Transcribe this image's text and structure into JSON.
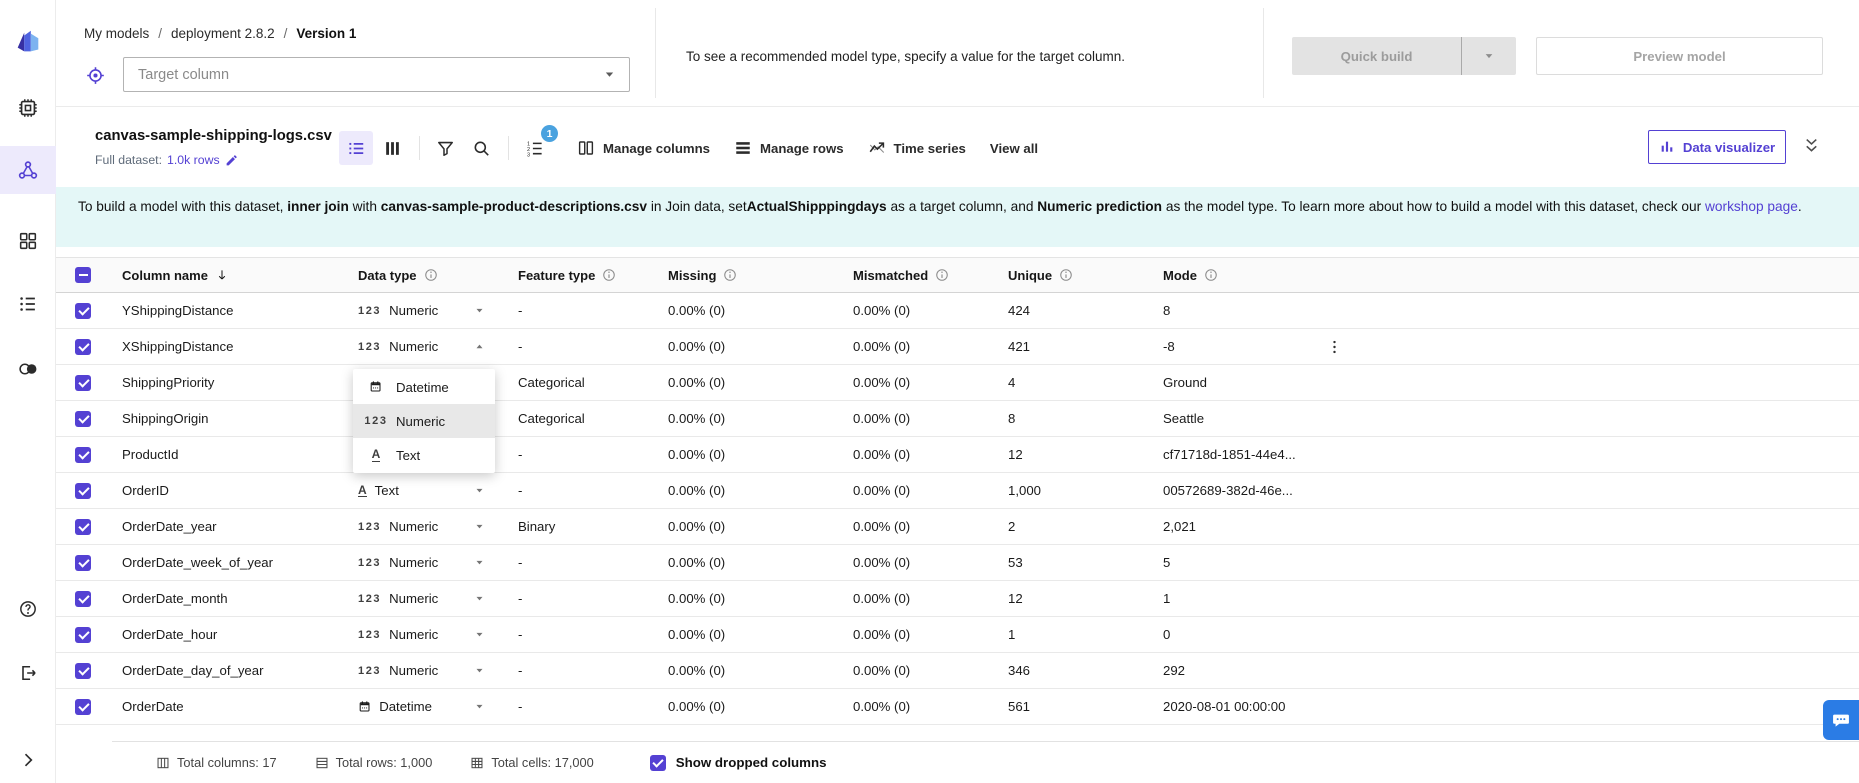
{
  "colors": {
    "accent": "#5441d3",
    "banner_bg": "#e4f7f7",
    "badge_blue": "#4aa2df",
    "selected_bg": "#edeafc",
    "chat_blue": "#2b7ce5"
  },
  "sidebar": {
    "items": [
      {
        "icon": "canvas-logo-icon",
        "selected": false
      },
      {
        "icon": "compute-chip-icon",
        "selected": false
      },
      {
        "icon": "models-icon",
        "selected": true
      },
      {
        "icon": "apps-icon",
        "selected": false
      },
      {
        "icon": "list-icon",
        "selected": false
      },
      {
        "icon": "datasets-icon",
        "selected": false
      }
    ],
    "bottom_items": [
      {
        "icon": "help-icon"
      },
      {
        "icon": "signout-icon"
      },
      {
        "icon": "expand-icon"
      }
    ]
  },
  "header": {
    "breadcrumb": [
      "My models",
      "deployment 2.8.2",
      "Version 1"
    ],
    "breadcrumb_separator": "/",
    "target_placeholder": "Target column",
    "hint": "To see a recommended model type, specify a value for the target column.",
    "quick_build_label": "Quick build",
    "preview_model_label": "Preview model"
  },
  "toolbar": {
    "dataset_name": "canvas-sample-shipping-logs.csv",
    "full_dataset_label": "Full dataset:",
    "rows_link": "1.0k rows",
    "sort_badge_count": "1",
    "actions": [
      {
        "icon": "manage-columns-icon",
        "label": "Manage columns"
      },
      {
        "icon": "manage-rows-icon",
        "label": "Manage rows"
      },
      {
        "icon": "time-series-icon",
        "label": "Time series"
      },
      {
        "icon": "",
        "label": "View all"
      }
    ],
    "data_visualizer_label": "Data visualizer"
  },
  "banner": {
    "segments": [
      {
        "text": "To build a model with this dataset, ",
        "style": "normal"
      },
      {
        "text": "inner join",
        "style": "bold"
      },
      {
        "text": " with ",
        "style": "normal"
      },
      {
        "text": "canvas-sample-product-descriptions.csv",
        "style": "bold"
      },
      {
        "text": " in Join data, set",
        "style": "normal"
      },
      {
        "text": "ActualShipppingdays",
        "style": "bold"
      },
      {
        "text": " as a target column, and ",
        "style": "normal"
      },
      {
        "text": "Numeric prediction",
        "style": "bold"
      },
      {
        "text": " as the model type. To learn more about how to build a model with this dataset, check our ",
        "style": "normal"
      },
      {
        "text": "workshop page",
        "style": "link"
      },
      {
        "text": ".",
        "style": "normal"
      }
    ]
  },
  "table": {
    "select_all_state": "indeterminate",
    "headers": [
      {
        "label": "Column name",
        "sort": true
      },
      {
        "label": "Data type",
        "info": true
      },
      {
        "label": "Feature type",
        "info": true
      },
      {
        "label": "Missing",
        "info": true
      },
      {
        "label": "Mismatched",
        "info": true
      },
      {
        "label": "Unique",
        "info": true
      },
      {
        "label": "Mode",
        "info": true
      }
    ],
    "rows": [
      {
        "name": "YShippingDistance",
        "data_type": "Numeric",
        "type_icon": "numeric-123-icon",
        "caret": "down",
        "feature_type": "-",
        "missing": "0.00% (0)",
        "mismatched": "0.00% (0)",
        "unique": "424",
        "mode": "8",
        "checked": true
      },
      {
        "name": "XShippingDistance",
        "data_type": "Numeric",
        "type_icon": "numeric-123-icon",
        "caret": "up",
        "feature_type": "-",
        "missing": "0.00% (0)",
        "mismatched": "0.00% (0)",
        "unique": "421",
        "mode": "-8",
        "checked": true,
        "kebab": true
      },
      {
        "name": "ShippingPriority",
        "data_type": "",
        "type_icon": "",
        "caret": "",
        "feature_type": "Categorical",
        "missing": "0.00% (0)",
        "mismatched": "0.00% (0)",
        "unique": "4",
        "mode": "Ground",
        "checked": true
      },
      {
        "name": "ShippingOrigin",
        "data_type": "",
        "type_icon": "",
        "caret": "",
        "feature_type": "Categorical",
        "missing": "0.00% (0)",
        "mismatched": "0.00% (0)",
        "unique": "8",
        "mode": "Seattle",
        "checked": true
      },
      {
        "name": "ProductId",
        "data_type": "",
        "type_icon": "",
        "caret": "",
        "feature_type": "-",
        "missing": "0.00% (0)",
        "mismatched": "0.00% (0)",
        "unique": "12",
        "mode": "cf71718d-1851-44e4...",
        "checked": true
      },
      {
        "name": "OrderID",
        "data_type": "Text",
        "type_icon": "text-a-icon",
        "caret": "down",
        "feature_type": "-",
        "missing": "0.00% (0)",
        "mismatched": "0.00% (0)",
        "unique": "1,000",
        "mode": "00572689-382d-46e...",
        "checked": true
      },
      {
        "name": "OrderDate_year",
        "data_type": "Numeric",
        "type_icon": "numeric-123-icon",
        "caret": "down",
        "feature_type": "Binary",
        "missing": "0.00% (0)",
        "mismatched": "0.00% (0)",
        "unique": "2",
        "mode": "2,021",
        "checked": true
      },
      {
        "name": "OrderDate_week_of_year",
        "data_type": "Numeric",
        "type_icon": "numeric-123-icon",
        "caret": "down",
        "feature_type": "-",
        "missing": "0.00% (0)",
        "mismatched": "0.00% (0)",
        "unique": "53",
        "mode": "5",
        "checked": true
      },
      {
        "name": "OrderDate_month",
        "data_type": "Numeric",
        "type_icon": "numeric-123-icon",
        "caret": "down",
        "feature_type": "-",
        "missing": "0.00% (0)",
        "mismatched": "0.00% (0)",
        "unique": "12",
        "mode": "1",
        "checked": true
      },
      {
        "name": "OrderDate_hour",
        "data_type": "Numeric",
        "type_icon": "numeric-123-icon",
        "caret": "down",
        "feature_type": "-",
        "missing": "0.00% (0)",
        "mismatched": "0.00% (0)",
        "unique": "1",
        "mode": "0",
        "checked": true
      },
      {
        "name": "OrderDate_day_of_year",
        "data_type": "Numeric",
        "type_icon": "numeric-123-icon",
        "caret": "down",
        "feature_type": "-",
        "missing": "0.00% (0)",
        "mismatched": "0.00% (0)",
        "unique": "346",
        "mode": "292",
        "checked": true
      },
      {
        "name": "OrderDate",
        "data_type": "Datetime",
        "type_icon": "calendar-icon",
        "caret": "down",
        "feature_type": "-",
        "missing": "0.00% (0)",
        "mismatched": "0.00% (0)",
        "unique": "561",
        "mode": "2020-08-01 00:00:00",
        "checked": true
      }
    ]
  },
  "dropdown": {
    "items": [
      {
        "icon": "calendar-icon",
        "label": "Datetime",
        "highlighted": false
      },
      {
        "icon": "numeric-123-icon",
        "label": "Numeric",
        "highlighted": true
      },
      {
        "icon": "text-a-icon",
        "label": "Text",
        "highlighted": false
      }
    ]
  },
  "footer": {
    "stats": [
      {
        "icon": "total-columns-icon",
        "label": "Total columns: 17"
      },
      {
        "icon": "total-rows-icon",
        "label": "Total rows: 1,000"
      },
      {
        "icon": "total-cells-icon",
        "label": "Total cells: 17,000"
      }
    ],
    "show_dropped_label": "Show dropped columns",
    "show_dropped_checked": true
  }
}
